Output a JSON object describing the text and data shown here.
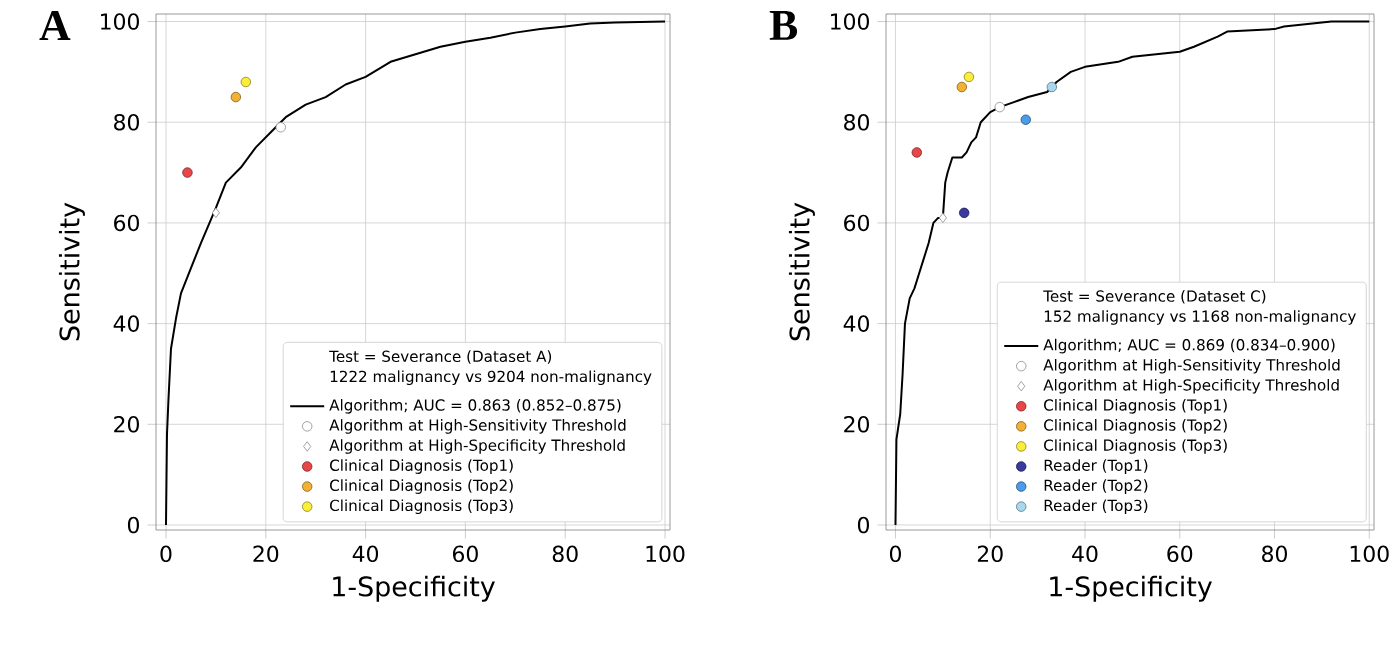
{
  "chart_data": [
    {
      "type": "line",
      "title": "A",
      "xlabel": "1-Specificity",
      "ylabel": "Sensitivity",
      "legend_title": "Test = Severance (Dataset A)",
      "annotations": [
        "1222 malignancy vs 9204 non-malignancy"
      ],
      "xlim": [
        -2,
        101
      ],
      "ylim": [
        -1,
        101.5
      ],
      "xticks": [
        0,
        20,
        40,
        60,
        80,
        100
      ],
      "yticks": [
        0,
        20,
        40,
        60,
        80,
        100
      ],
      "grid": true,
      "legend": "bottom right",
      "series": [
        {
          "name": "Algorithm; AUC = 0.863 (0.852–0.875)",
          "type": "line",
          "color": "#000000",
          "x": [
            0,
            0.2,
            0.5,
            1,
            2,
            3,
            5,
            7,
            10,
            12,
            15,
            18,
            21,
            24,
            28,
            32,
            36,
            40,
            45,
            50,
            55,
            60,
            65,
            70,
            75,
            80,
            85,
            90,
            95,
            100
          ],
          "values": [
            0,
            18,
            25,
            35,
            41,
            46,
            51,
            56,
            63,
            68,
            71,
            75,
            78,
            81,
            83.5,
            85,
            87.5,
            89,
            92,
            93.5,
            95,
            96,
            96.8,
            97.8,
            98.5,
            99,
            99.6,
            99.8,
            99.9,
            100
          ]
        },
        {
          "name": "Algorithm at High-Sensitivity Threshold",
          "type": "scatter",
          "marker": "circle",
          "color": "#ffffff",
          "x": [
            23
          ],
          "values": [
            79
          ]
        },
        {
          "name": "Algorithm at High-Specificity Threshold",
          "type": "scatter",
          "marker": "diamond",
          "color": "#ffffff",
          "x": [
            10
          ],
          "values": [
            62
          ]
        },
        {
          "name": "Clinical Diagnosis (Top1)",
          "type": "scatter",
          "marker": "circle",
          "color": "#e8474a",
          "x": [
            4.3
          ],
          "values": [
            70
          ]
        },
        {
          "name": "Clinical Diagnosis (Top2)",
          "type": "scatter",
          "marker": "circle",
          "color": "#f2b134",
          "x": [
            14
          ],
          "values": [
            85
          ]
        },
        {
          "name": "Clinical Diagnosis (Top3)",
          "type": "scatter",
          "marker": "circle",
          "color": "#fbee3a",
          "x": [
            16
          ],
          "values": [
            88
          ]
        }
      ]
    },
    {
      "type": "line",
      "title": "B",
      "xlabel": "1-Specificity",
      "ylabel": "Sensitivity",
      "legend_title": "Test = Severance (Dataset C)",
      "annotations": [
        "152 malignancy vs 1168 non-malignancy"
      ],
      "xlim": [
        -2,
        101
      ],
      "ylim": [
        -1,
        101.5
      ],
      "xticks": [
        0,
        20,
        40,
        60,
        80,
        100
      ],
      "yticks": [
        0,
        20,
        40,
        60,
        80,
        100
      ],
      "grid": true,
      "legend": "bottom right",
      "series": [
        {
          "name": "Algorithm; AUC = 0.869 (0.834–0.900)",
          "type": "line",
          "color": "#000000",
          "x": [
            0,
            0.2,
            1,
            1.5,
            2,
            3,
            4,
            5,
            6,
            7,
            8,
            9,
            10,
            10.5,
            11,
            12,
            14,
            15,
            16,
            17,
            18,
            20,
            22,
            25,
            28,
            32,
            34,
            37,
            40,
            47,
            50,
            60,
            63,
            68,
            70,
            80,
            82,
            92,
            100
          ],
          "values": [
            0,
            17,
            22,
            30,
            40,
            45,
            47,
            50,
            53,
            56,
            60,
            61,
            61,
            68,
            70,
            73,
            73,
            74,
            76,
            77,
            80,
            82,
            83,
            84,
            85,
            86,
            88,
            90,
            91,
            92,
            93,
            94,
            95,
            97,
            98,
            98.5,
            99,
            100,
            100
          ]
        },
        {
          "name": "Algorithm at High-Sensitivity Threshold",
          "type": "scatter",
          "marker": "circle",
          "color": "#ffffff",
          "x": [
            22
          ],
          "values": [
            83
          ]
        },
        {
          "name": "Algorithm at High-Specificity Threshold",
          "type": "scatter",
          "marker": "diamond",
          "color": "#ffffff",
          "x": [
            10
          ],
          "values": [
            61
          ]
        },
        {
          "name": "Clinical Diagnosis (Top1)",
          "type": "scatter",
          "marker": "circle",
          "color": "#e8474a",
          "x": [
            4.5
          ],
          "values": [
            74
          ]
        },
        {
          "name": "Clinical Diagnosis (Top2)",
          "type": "scatter",
          "marker": "circle",
          "color": "#f2b134",
          "x": [
            14
          ],
          "values": [
            87
          ]
        },
        {
          "name": "Clinical Diagnosis (Top3)",
          "type": "scatter",
          "marker": "circle",
          "color": "#fbee3a",
          "x": [
            15.5
          ],
          "values": [
            89
          ]
        },
        {
          "name": "Reader (Top1)",
          "type": "scatter",
          "marker": "circle",
          "color": "#3a3a9e",
          "x": [
            14.5
          ],
          "values": [
            62
          ]
        },
        {
          "name": "Reader (Top2)",
          "type": "scatter",
          "marker": "circle",
          "color": "#4a9be8",
          "x": [
            27.5
          ],
          "values": [
            80.5
          ]
        },
        {
          "name": "Reader (Top3)",
          "type": "scatter",
          "marker": "circle",
          "color": "#a8d8ee",
          "x": [
            33
          ],
          "values": [
            87
          ]
        }
      ]
    }
  ]
}
